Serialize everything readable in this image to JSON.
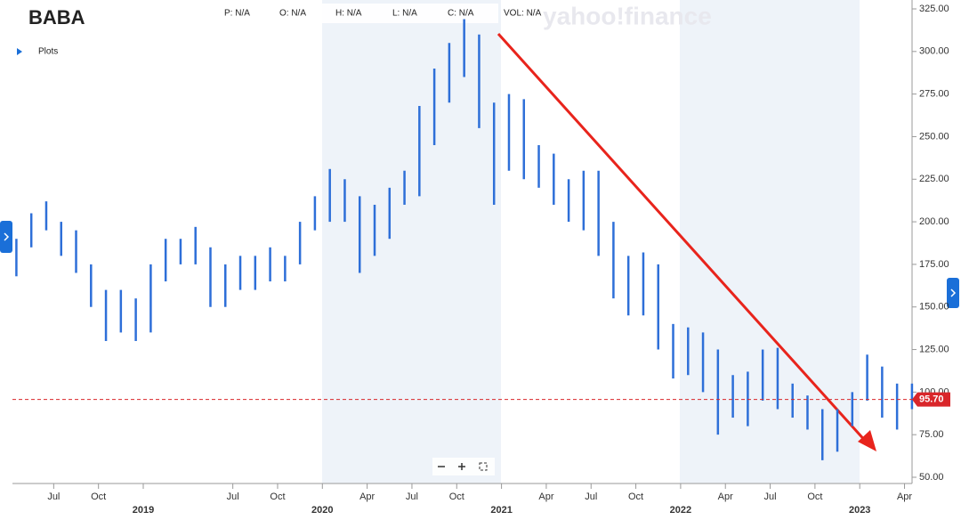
{
  "title": "BABA",
  "plots_label": "Plots",
  "header": [
    "P: N/A",
    "O: N/A",
    "H: N/A",
    "L: N/A",
    "C: N/A",
    "VOL: N/A"
  ],
  "chart_data": {
    "type": "ohlc",
    "color": "#2e6fd8",
    "x": [
      "2018-04",
      "2018-05",
      "2018-06",
      "2018-07",
      "2018-08",
      "2018-09",
      "2018-10",
      "2018-11",
      "2018-12",
      "2019-01",
      "2019-02",
      "2019-03",
      "2019-04",
      "2019-05",
      "2019-06",
      "2019-07",
      "2019-08",
      "2019-09",
      "2019-10",
      "2019-11",
      "2019-12",
      "2020-01",
      "2020-02",
      "2020-03",
      "2020-04",
      "2020-05",
      "2020-06",
      "2020-07",
      "2020-08",
      "2020-09",
      "2020-10",
      "2020-11",
      "2020-12",
      "2021-01",
      "2021-02",
      "2021-03",
      "2021-04",
      "2021-05",
      "2021-06",
      "2021-07",
      "2021-08",
      "2021-09",
      "2021-10",
      "2021-11",
      "2021-12",
      "2022-01",
      "2022-02",
      "2022-03",
      "2022-04",
      "2022-05",
      "2022-06",
      "2022-07",
      "2022-08",
      "2022-09",
      "2022-10",
      "2022-11",
      "2022-12",
      "2023-01",
      "2023-02",
      "2023-03",
      "2023-04"
    ],
    "high": [
      190,
      205,
      212,
      200,
      195,
      175,
      160,
      160,
      155,
      175,
      190,
      190,
      197,
      185,
      175,
      180,
      180,
      185,
      180,
      200,
      215,
      231,
      225,
      215,
      210,
      220,
      230,
      268,
      290,
      305,
      319,
      310,
      270,
      275,
      272,
      245,
      240,
      225,
      230,
      230,
      200,
      180,
      182,
      175,
      140,
      138,
      135,
      125,
      110,
      112,
      125,
      126,
      105,
      98,
      90,
      90,
      100,
      122,
      115,
      105,
      105
    ],
    "low": [
      168,
      185,
      195,
      180,
      170,
      150,
      130,
      135,
      130,
      135,
      165,
      175,
      175,
      150,
      150,
      160,
      160,
      165,
      165,
      175,
      195,
      200,
      200,
      170,
      180,
      190,
      210,
      215,
      245,
      270,
      285,
      255,
      210,
      230,
      225,
      220,
      210,
      200,
      195,
      180,
      155,
      145,
      145,
      125,
      108,
      110,
      100,
      75,
      85,
      80,
      95,
      90,
      85,
      78,
      60,
      65,
      80,
      95,
      85,
      78,
      90
    ],
    "last_price": {
      "value": 95.7,
      "label": "95.70"
    },
    "last_price_color": "#d9262a",
    "ylim": [
      50,
      325
    ],
    "yticks": [
      {
        "value": 50,
        "label": "50.00"
      },
      {
        "value": 75,
        "label": "75.00"
      },
      {
        "value": 100,
        "label": "100.00"
      },
      {
        "value": 125,
        "label": "125.00"
      },
      {
        "value": 150,
        "label": "150.00"
      },
      {
        "value": 175,
        "label": "175.00"
      },
      {
        "value": 200,
        "label": "200.00"
      },
      {
        "value": 225,
        "label": "225.00"
      },
      {
        "value": 250,
        "label": "250.00"
      },
      {
        "value": 275,
        "label": "275.00"
      },
      {
        "value": 300,
        "label": "300.00"
      },
      {
        "value": 325,
        "label": "325.00"
      }
    ],
    "xticks": [
      {
        "value": "2018-07",
        "label": "Jul"
      },
      {
        "value": "2018-10",
        "label": "Oct"
      },
      {
        "value": "2019-01",
        "label": "2019"
      },
      {
        "value": "2019-07",
        "label": "Jul"
      },
      {
        "value": "2019-10",
        "label": "Oct"
      },
      {
        "value": "2020-01",
        "label": "2020"
      },
      {
        "value": "2020-04",
        "label": "Apr"
      },
      {
        "value": "2020-07",
        "label": "Jul"
      },
      {
        "value": "2020-10",
        "label": "Oct"
      },
      {
        "value": "2021-01",
        "label": "2021"
      },
      {
        "value": "2021-04",
        "label": "Apr"
      },
      {
        "value": "2021-07",
        "label": "Jul"
      },
      {
        "value": "2021-10",
        "label": "Oct"
      },
      {
        "value": "2022-01",
        "label": "2022"
      },
      {
        "value": "2022-04",
        "label": "Apr"
      },
      {
        "value": "2022-07",
        "label": "Jul"
      },
      {
        "value": "2022-10",
        "label": "Oct"
      },
      {
        "value": "2023-01",
        "label": "2023"
      },
      {
        "value": "2023-04",
        "label": "Apr"
      }
    ]
  }
}
